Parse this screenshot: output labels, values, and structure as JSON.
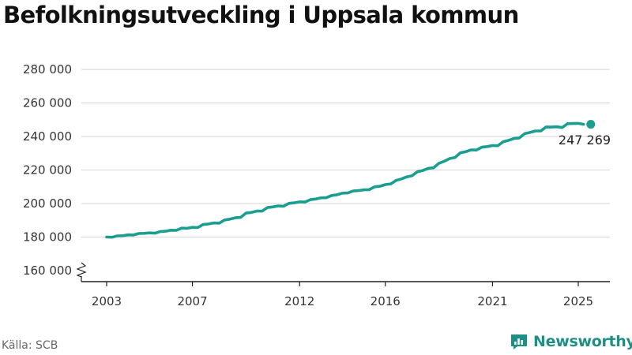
{
  "title": "Befolkningsutveckling i Uppsala kommun",
  "source": "Källa: SCB",
  "brand": {
    "name": "Newsworthy",
    "icon": "newsworthy-logo-icon",
    "color": "#1e8f85"
  },
  "colors": {
    "line": "#1a9e8f",
    "axis": "#222222",
    "grid": "#d6d6d6"
  },
  "chart_data": {
    "type": "line",
    "title": "Befolkningsutveckling i Uppsala kommun",
    "xlabel": "",
    "ylabel": "",
    "ylim": [
      160000,
      280000
    ],
    "y_axis_break": true,
    "grid": "horizontal",
    "yticks": [
      160000,
      180000,
      200000,
      220000,
      240000,
      260000,
      280000
    ],
    "ytick_labels": [
      "160 000",
      "180 000",
      "200 000",
      "220 000",
      "240 000",
      "260 000",
      "280 000"
    ],
    "xticks": [
      2003,
      2007,
      2012,
      2016,
      2021,
      2025
    ],
    "xtick_labels": [
      "2003",
      "2007",
      "2012",
      "2016",
      "2021",
      "2025"
    ],
    "end_label": "247 269",
    "series": [
      {
        "x": [
          2003.0,
          2003.25,
          2003.5,
          2003.75,
          2004.0,
          2004.25,
          2004.5,
          2004.75,
          2005.0,
          2005.25,
          2005.5,
          2005.75,
          2006.0,
          2006.25,
          2006.5,
          2006.75,
          2007.0,
          2007.25,
          2007.5,
          2007.75,
          2008.0,
          2008.25,
          2008.5,
          2008.75,
          2009.0,
          2009.25,
          2009.5,
          2009.75,
          2010.0,
          2010.25,
          2010.5,
          2010.75,
          2011.0,
          2011.25,
          2011.5,
          2011.75,
          2012.0,
          2012.25,
          2012.5,
          2012.75,
          2013.0,
          2013.25,
          2013.5,
          2013.75,
          2014.0,
          2014.25,
          2014.5,
          2014.75,
          2015.0,
          2015.25,
          2015.5,
          2015.75,
          2016.0,
          2016.25,
          2016.5,
          2016.75,
          2017.0,
          2017.25,
          2017.5,
          2017.75,
          2018.0,
          2018.25,
          2018.5,
          2018.75,
          2019.0,
          2019.25,
          2019.5,
          2019.75,
          2020.0,
          2020.25,
          2020.5,
          2020.75,
          2021.0,
          2021.25,
          2021.5,
          2021.75,
          2022.0,
          2022.25,
          2022.5,
          2022.75,
          2023.0,
          2023.25,
          2023.5,
          2023.75,
          2024.0,
          2024.25,
          2024.5,
          2024.75,
          2025.0,
          2025.25
        ],
        "values": [
          180000,
          179900,
          180700,
          180800,
          181300,
          181200,
          182100,
          182200,
          182500,
          182300,
          183300,
          183500,
          184100,
          184000,
          185300,
          185200,
          185800,
          185700,
          187500,
          187800,
          188400,
          188300,
          190200,
          190700,
          191500,
          191700,
          194300,
          194700,
          195500,
          195500,
          197600,
          198000,
          198600,
          198400,
          200100,
          200400,
          201000,
          200900,
          202300,
          202700,
          203400,
          203500,
          204800,
          205200,
          206200,
          206300,
          207500,
          207700,
          208200,
          208300,
          210000,
          210300,
          211300,
          211700,
          213800,
          214700,
          215900,
          216600,
          219000,
          219700,
          221000,
          221300,
          224000,
          225200,
          226800,
          227500,
          230300,
          230900,
          232000,
          231900,
          233600,
          234000,
          234600,
          234500,
          236900,
          237700,
          238800,
          239100,
          241700,
          242400,
          243300,
          243300,
          245700,
          245600,
          245800,
          245300,
          247600,
          247700,
          247800,
          247269
        ]
      }
    ]
  }
}
